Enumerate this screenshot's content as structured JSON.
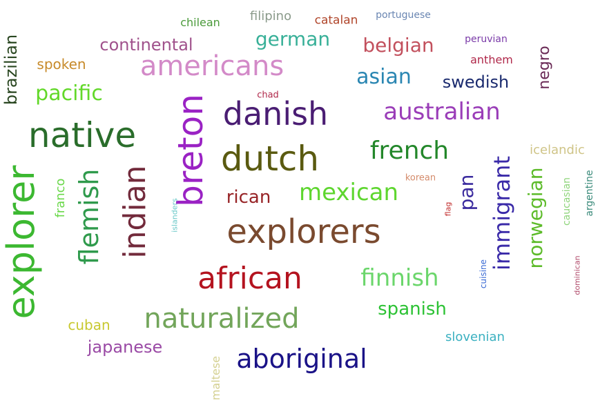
{
  "words": [
    {
      "text": "explorer",
      "color": "#3cb831"
    },
    {
      "text": "native",
      "color": "#2a6d2b"
    },
    {
      "text": "breton",
      "color": "#9a22c4"
    },
    {
      "text": "dutch",
      "color": "#5a5a10"
    },
    {
      "text": "explorers",
      "color": "#7a4a2f"
    },
    {
      "text": "danish",
      "color": "#4a1d73"
    },
    {
      "text": "americans",
      "color": "#d38ac8"
    },
    {
      "text": "indian",
      "color": "#722a3b"
    },
    {
      "text": "african",
      "color": "#b4131f"
    },
    {
      "text": "naturalized",
      "color": "#72a55a"
    },
    {
      "text": "aboriginal",
      "color": "#1a1287"
    },
    {
      "text": "flemish",
      "color": "#2f9a4c"
    },
    {
      "text": "mexican",
      "color": "#5ed62f"
    },
    {
      "text": "french",
      "color": "#23872a"
    },
    {
      "text": "australian",
      "color": "#9a3db8"
    },
    {
      "text": "immigrant",
      "color": "#3a2aa8"
    },
    {
      "text": "norwegian",
      "color": "#5dbb2a"
    },
    {
      "text": "finnish",
      "color": "#6bd66b"
    },
    {
      "text": "pacific",
      "color": "#62d829"
    },
    {
      "text": "german",
      "color": "#38b098"
    },
    {
      "text": "belgian",
      "color": "#c2505d"
    },
    {
      "text": "asian",
      "color": "#2a86b2"
    },
    {
      "text": "continental",
      "color": "#a0528c"
    },
    {
      "text": "spanish",
      "color": "#2cc234"
    },
    {
      "text": "brazilian",
      "color": "#2a4721"
    },
    {
      "text": "swedish",
      "color": "#1a2a6e"
    },
    {
      "text": "rican",
      "color": "#972326"
    },
    {
      "text": "japanese",
      "color": "#9a4aa5"
    },
    {
      "text": "pan",
      "color": "#3a2a9e"
    },
    {
      "text": "negro",
      "color": "#6a2a56"
    },
    {
      "text": "spoken",
      "color": "#c78a2a"
    },
    {
      "text": "cuban",
      "color": "#c8c82f"
    },
    {
      "text": "slovenian",
      "color": "#3ab0c0"
    },
    {
      "text": "icelandic",
      "color": "#cfc487"
    },
    {
      "text": "franco",
      "color": "#6ad84a"
    },
    {
      "text": "filipino",
      "color": "#8a9a8a"
    },
    {
      "text": "catalan",
      "color": "#b0452a"
    },
    {
      "text": "chilean",
      "color": "#4a9a3a"
    },
    {
      "text": "anthem",
      "color": "#b0284a"
    },
    {
      "text": "maltese",
      "color": "#d4d090"
    },
    {
      "text": "portuguese",
      "color": "#6a86b2"
    },
    {
      "text": "peruvian",
      "color": "#7a3aa8"
    },
    {
      "text": "caucasian",
      "color": "#8ed47a"
    },
    {
      "text": "argentine",
      "color": "#3a8a7a"
    },
    {
      "text": "korean",
      "color": "#d48a6a"
    },
    {
      "text": "chad",
      "color": "#b0284a"
    },
    {
      "text": "cuisine",
      "color": "#3a6ad4"
    },
    {
      "text": "islanders",
      "color": "#6ac8c8"
    },
    {
      "text": "dominican",
      "color": "#b04a6a"
    },
    {
      "text": "flag",
      "color": "#c02a2a"
    }
  ]
}
